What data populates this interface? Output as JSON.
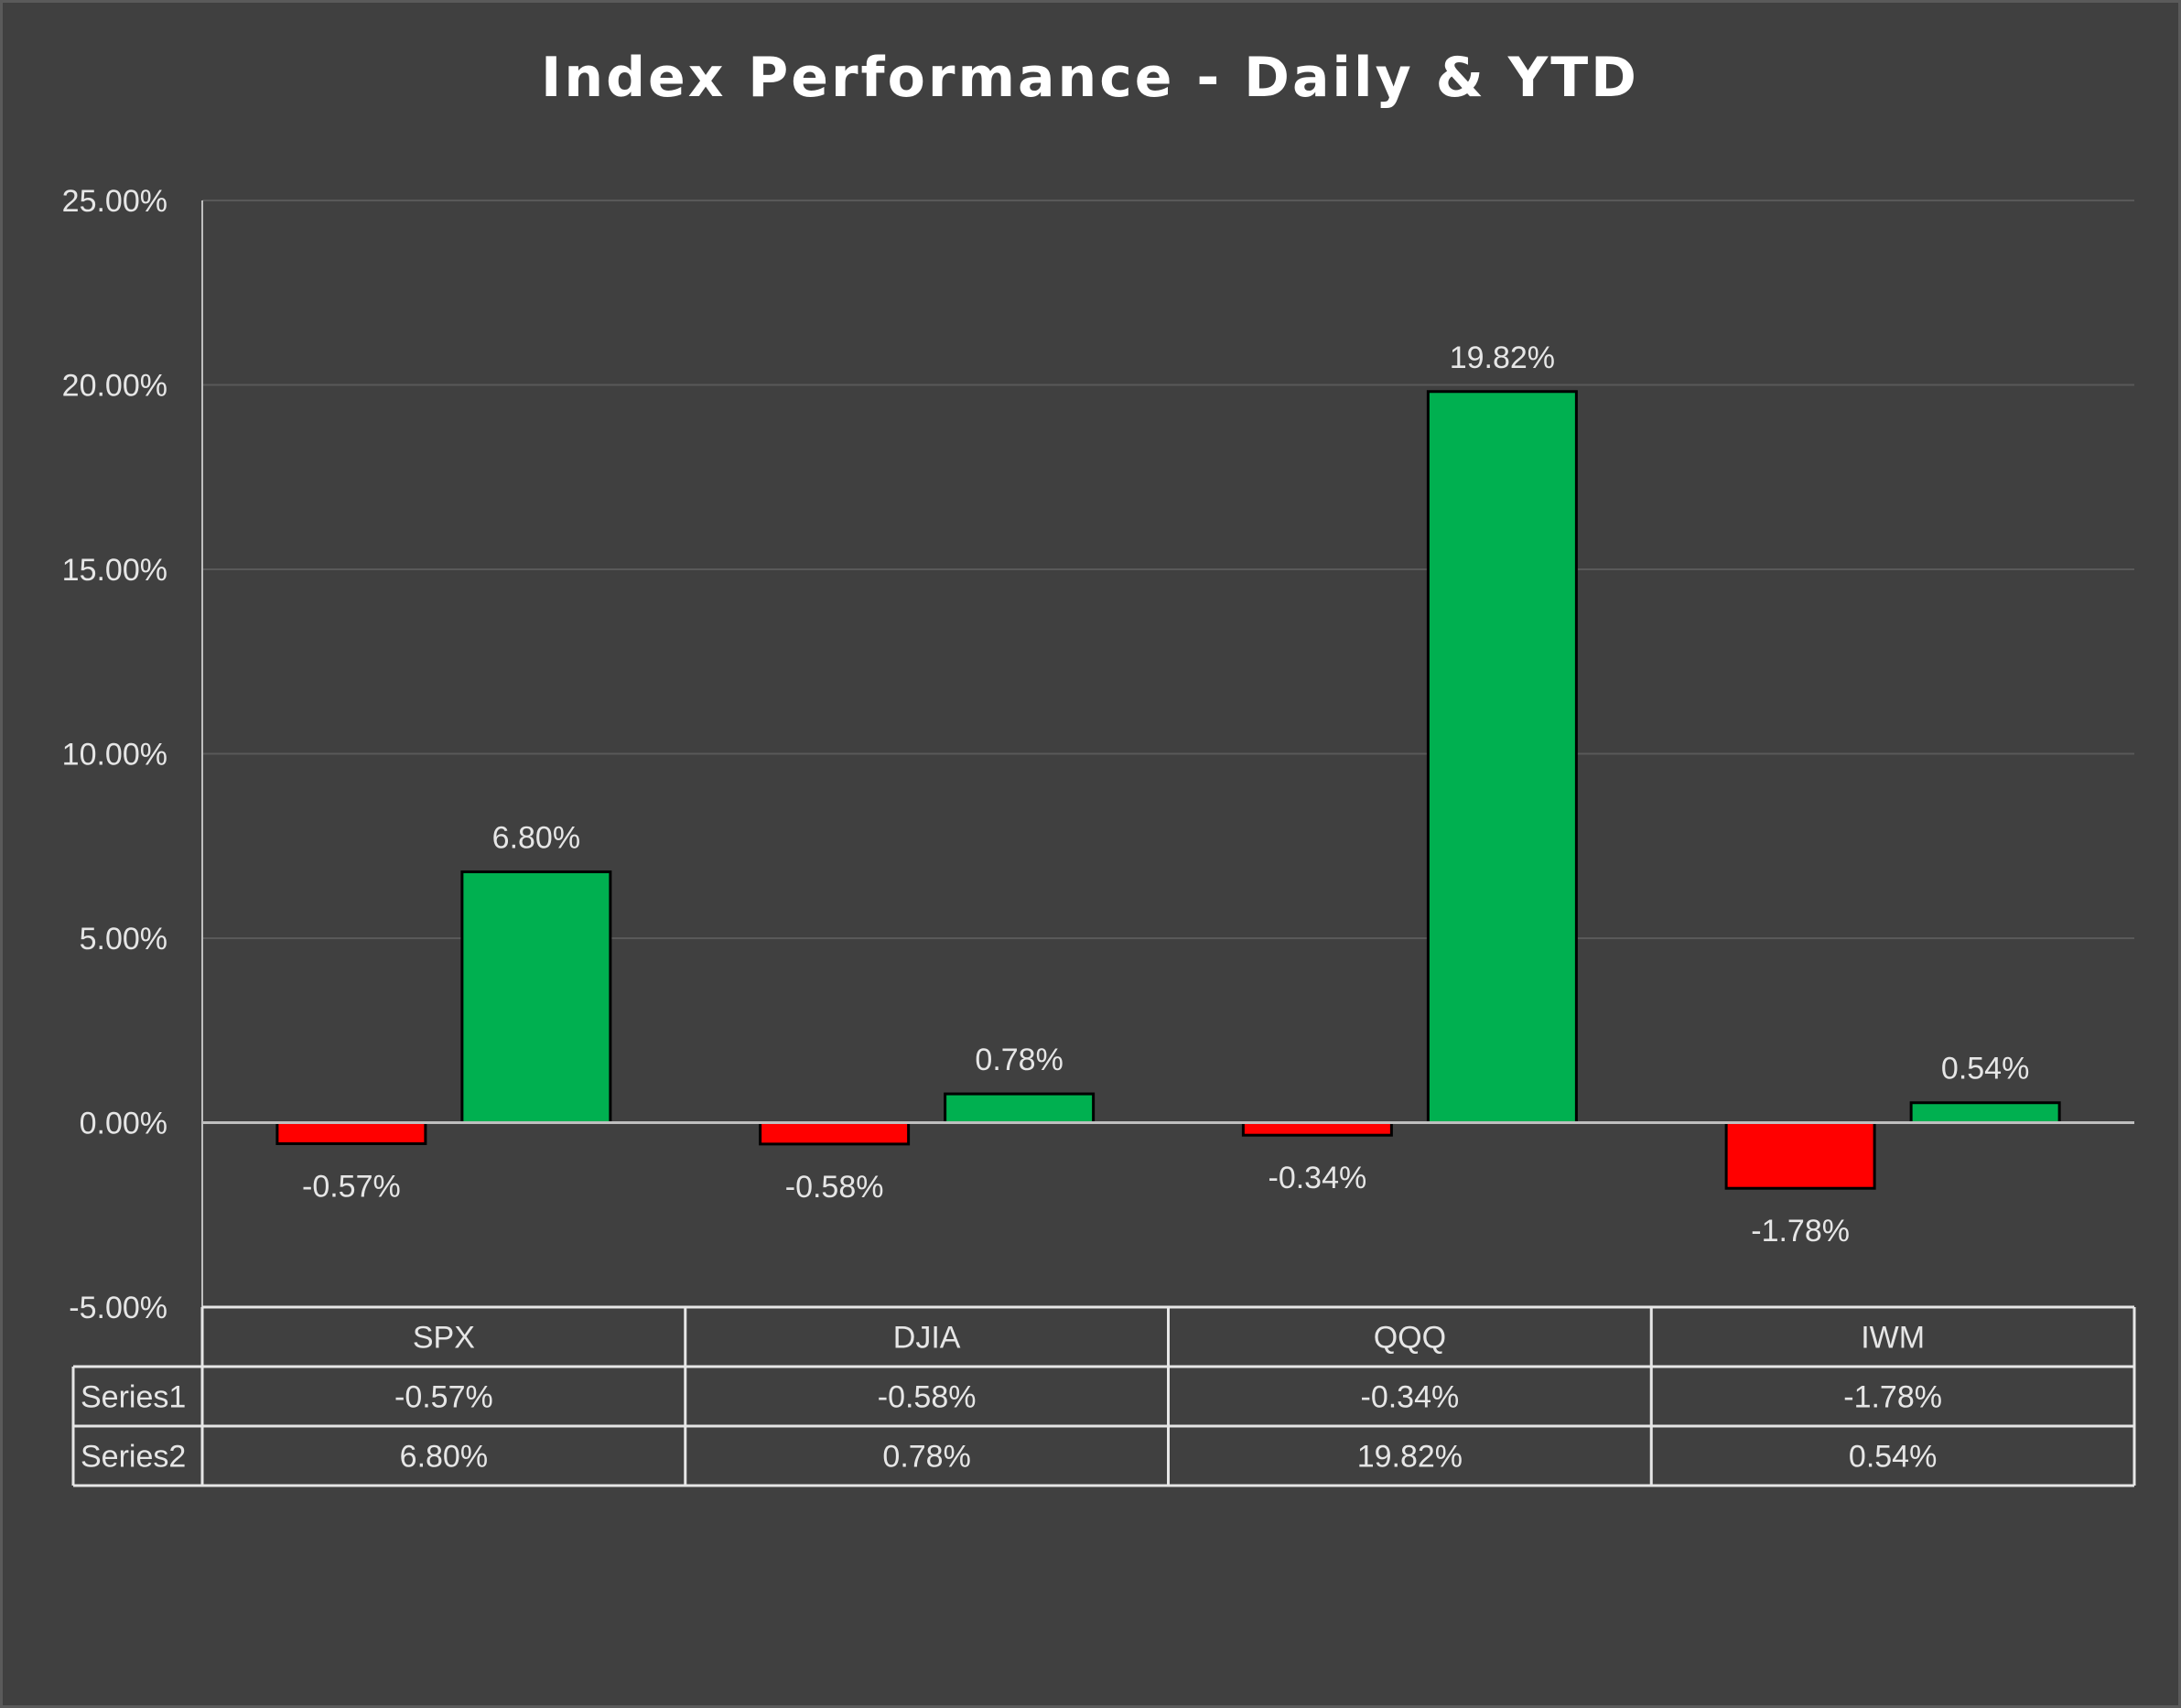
{
  "chart_data": {
    "type": "bar",
    "title": "Index Performance - Daily & YTD",
    "categories": [
      "SPX",
      "DJIA",
      "QQQ",
      "IWM"
    ],
    "series": [
      {
        "name": "Series1",
        "values": [
          -0.0057,
          -0.0058,
          -0.0034,
          -0.0178
        ],
        "labels": [
          "-0.57%",
          "-0.58%",
          "-0.34%",
          "-1.78%"
        ],
        "color": "#ff0000"
      },
      {
        "name": "Series2",
        "values": [
          0.068,
          0.0078,
          0.1982,
          0.0054
        ],
        "labels": [
          "6.80%",
          "0.78%",
          "19.82%",
          "0.54%"
        ],
        "color": "#00b050"
      }
    ],
    "ylim": [
      -0.05,
      0.25
    ],
    "yticks": [
      0.25,
      0.2,
      0.15,
      0.1,
      0.05,
      0.0,
      -0.05
    ],
    "ytick_labels": [
      "25.00%",
      "20.00%",
      "15.00%",
      "10.00%",
      "5.00%",
      "0.00%",
      "-5.00%"
    ],
    "grid": true,
    "legend": "data table below chart",
    "data_table": true
  },
  "colors": {
    "background": "#404040",
    "gridline": "#595959",
    "axis": "#bfbfbf",
    "text": "#e6e6e6",
    "title": "#ffffff"
  }
}
